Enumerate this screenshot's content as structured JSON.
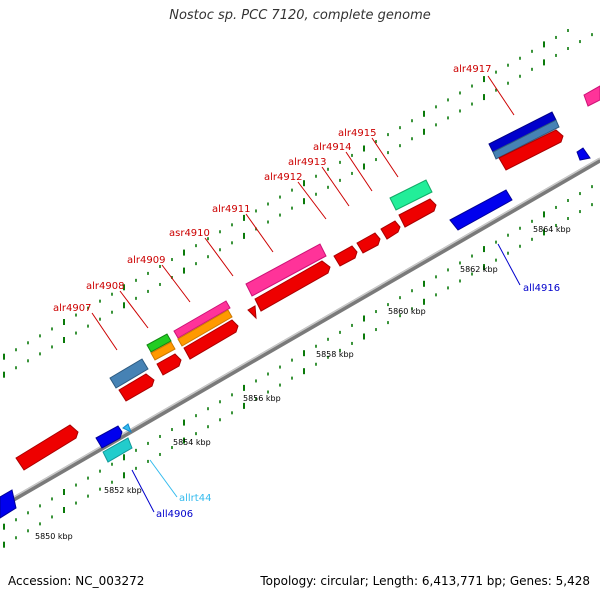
{
  "title": "Nostoc sp. PCC 7120, complete genome",
  "footer": {
    "accession": "Accession: NC_003272",
    "stats": "Topology: circular; Length: 6,413,771 bp; Genes: 5,428"
  },
  "colors": {
    "forward": "#cc0000",
    "reverse": "#0000cc",
    "rna": "#33bbee",
    "backbone": "#888888",
    "tick": "#006600"
  },
  "scale_labels": [
    "5850 kbp",
    "5852 kbp",
    "5854 kbp",
    "5856 kbp",
    "5858 kbp",
    "5860 kbp",
    "5862 kbp",
    "5864 kbp"
  ],
  "gene_labels": [
    {
      "name": "alr4907",
      "strand": "forward"
    },
    {
      "name": "alr4908",
      "strand": "forward"
    },
    {
      "name": "alr4909",
      "strand": "forward"
    },
    {
      "name": "asr4910",
      "strand": "forward"
    },
    {
      "name": "alr4911",
      "strand": "forward"
    },
    {
      "name": "alr4912",
      "strand": "forward"
    },
    {
      "name": "alr4913",
      "strand": "forward"
    },
    {
      "name": "alr4914",
      "strand": "forward"
    },
    {
      "name": "alr4915",
      "strand": "forward"
    },
    {
      "name": "alr4917",
      "strand": "forward"
    },
    {
      "name": "all4916",
      "strand": "reverse"
    },
    {
      "name": "allrt44",
      "strand": "rna"
    },
    {
      "name": "all4906",
      "strand": "reverse"
    }
  ]
}
